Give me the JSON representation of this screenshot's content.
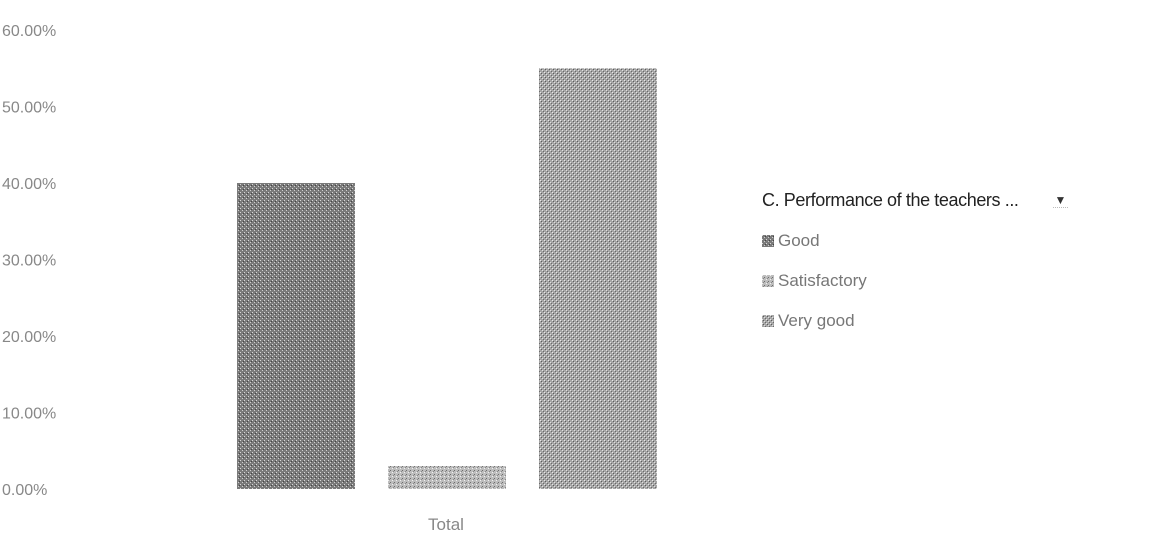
{
  "chart_data": {
    "type": "bar",
    "categories": [
      "Total"
    ],
    "series": [
      {
        "name": "Good",
        "values": [
          0.4
        ]
      },
      {
        "name": "Satisfactory",
        "values": [
          0.03
        ]
      },
      {
        "name": "Very good",
        "values": [
          0.55
        ]
      }
    ],
    "ylim": [
      0,
      0.6
    ],
    "yticks": [
      "0.00%",
      "10.00%",
      "20.00%",
      "30.00%",
      "40.00%",
      "50.00%",
      "60.00%"
    ],
    "grid": false,
    "legend_position": "right"
  },
  "legend": {
    "title": "C. Performance of the teachers ...",
    "dropdown_glyph": "▼"
  },
  "colors": {
    "Good": "#6f6f6f",
    "Satisfactory": "#a9a9a9",
    "Very good": "#9a9a9a"
  }
}
